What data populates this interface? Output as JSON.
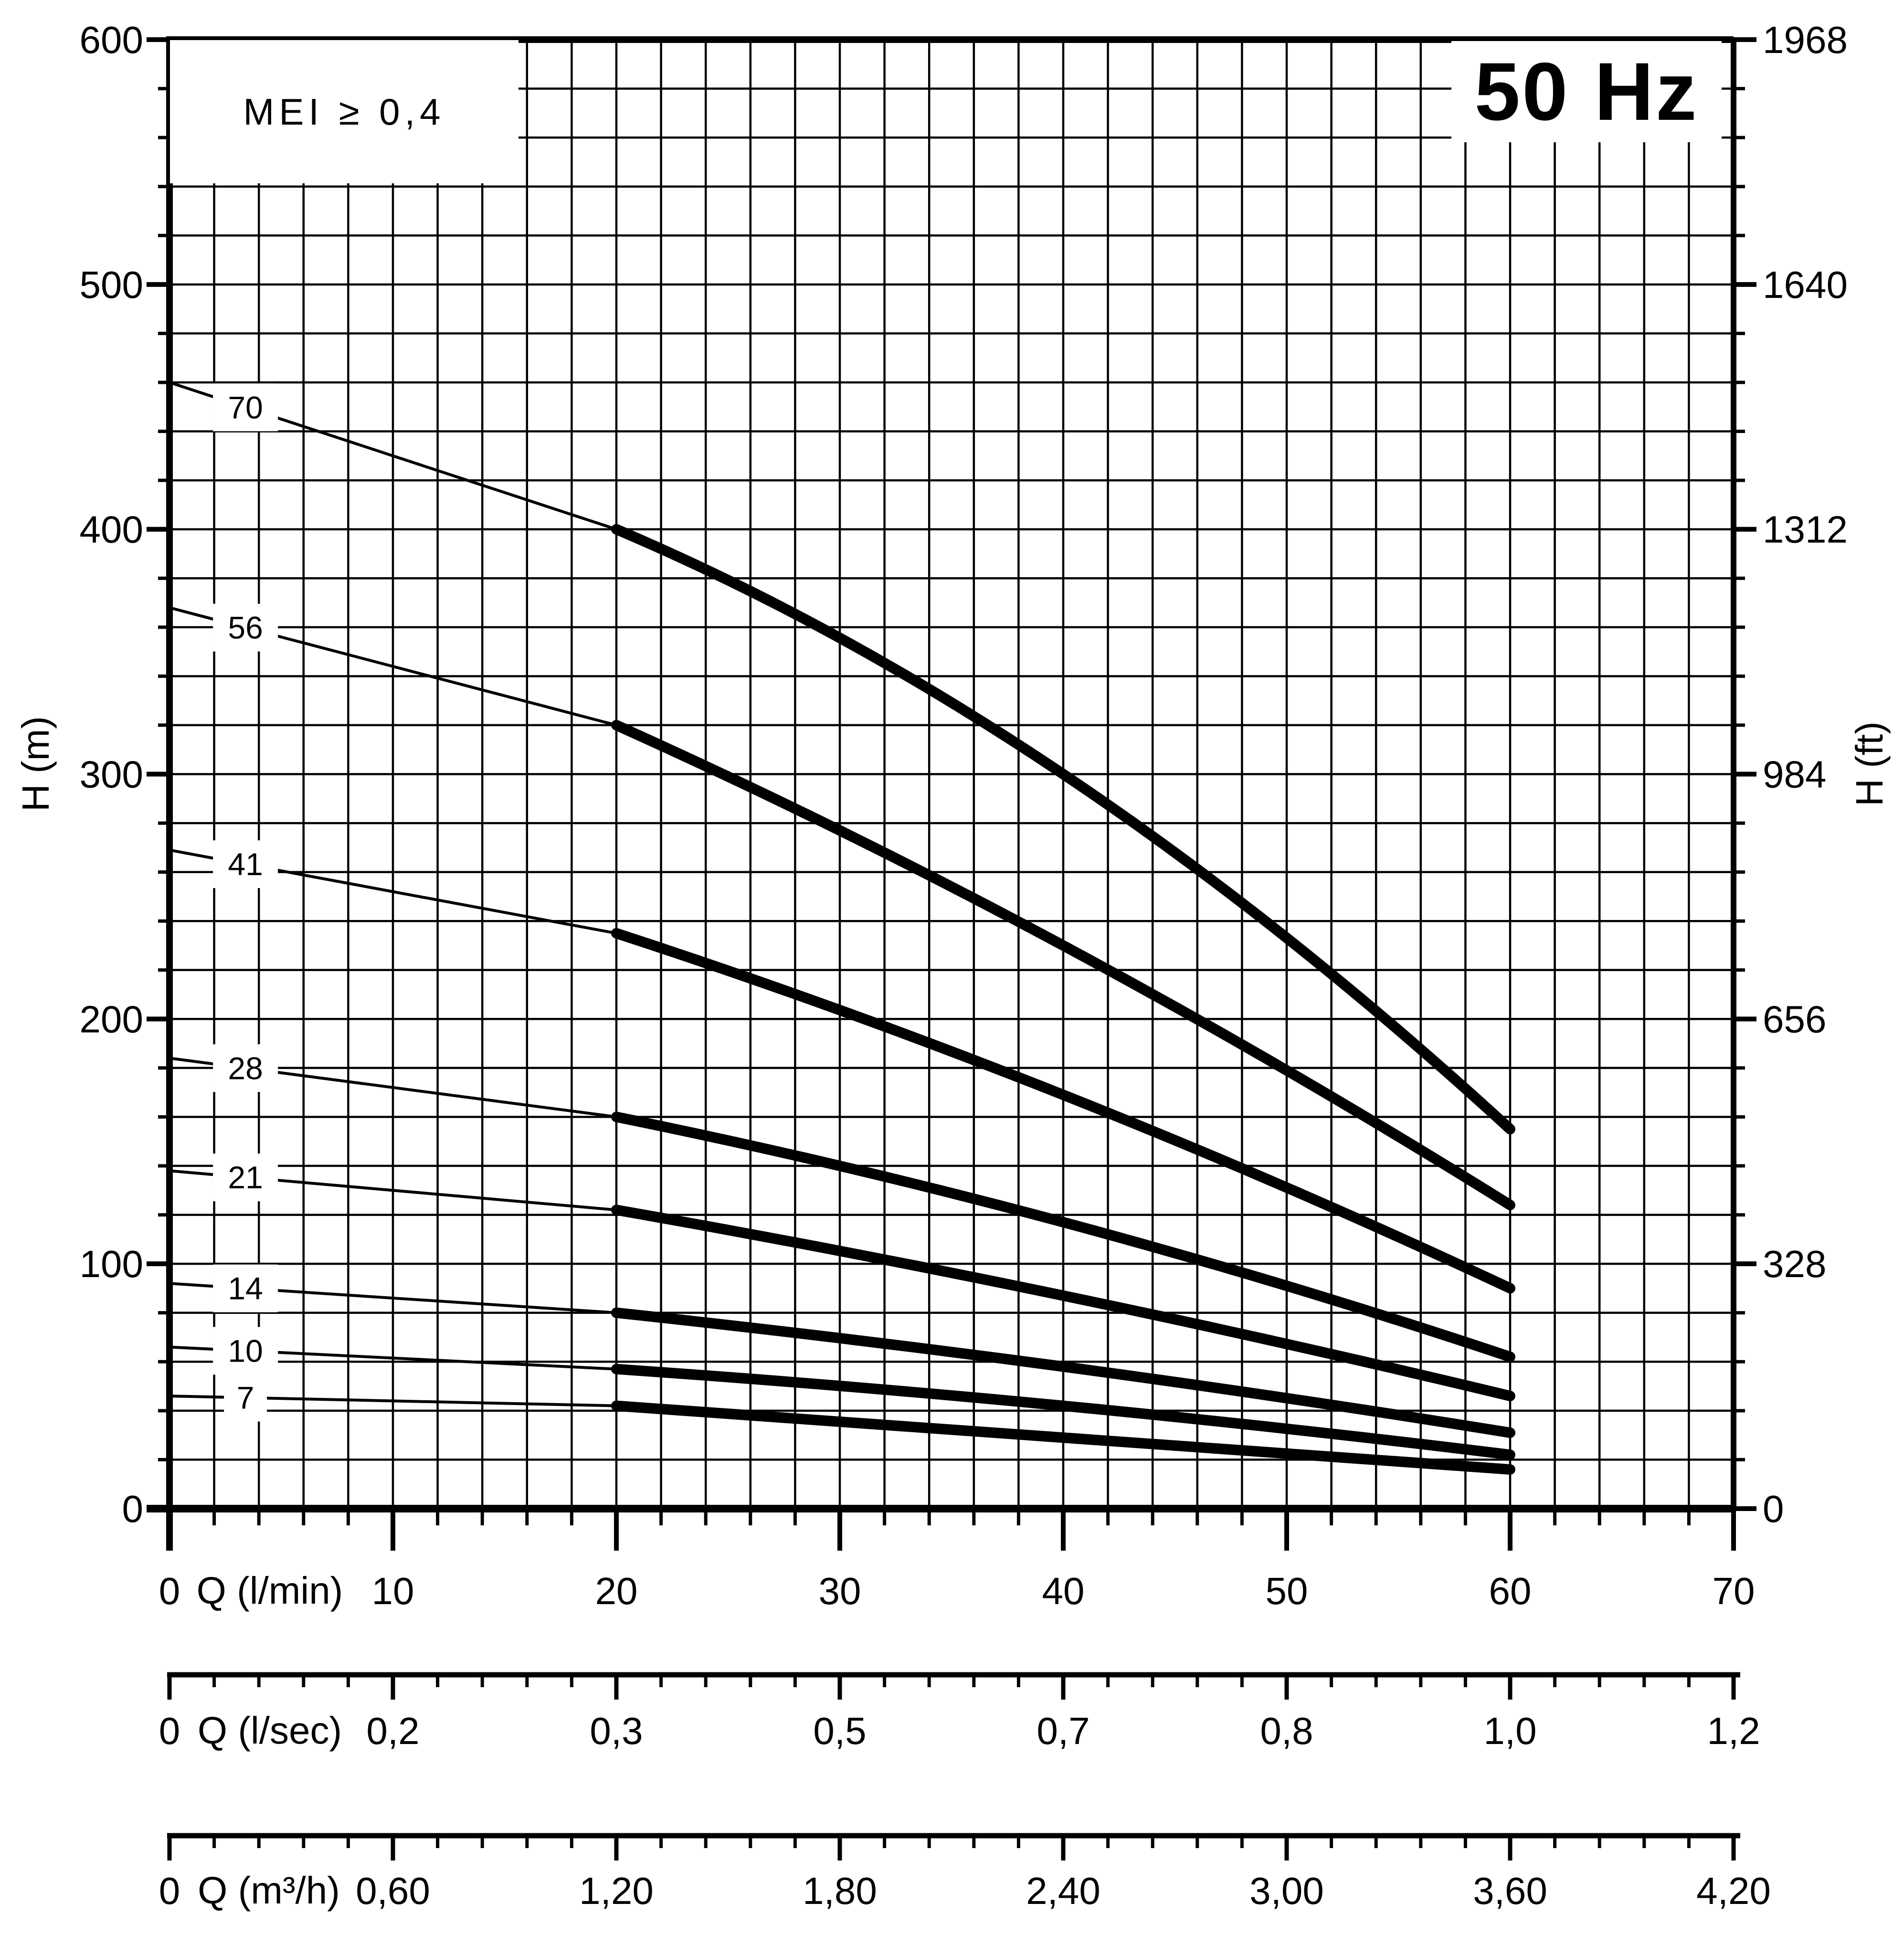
{
  "mei_label": "MEI ≥ 0,4",
  "frequency_badge": "50 Hz",
  "axes": {
    "left": {
      "label": "H (m)",
      "ticks": [
        0,
        100,
        200,
        300,
        400,
        500,
        600
      ]
    },
    "right": {
      "label": "H (ft)",
      "ticks": [
        0,
        328,
        656,
        984,
        1312,
        1640,
        1968
      ]
    },
    "bottom_lmin": {
      "label": "Q (l/min)",
      "ticks": [
        0,
        10,
        20,
        30,
        40,
        50,
        60,
        70
      ]
    },
    "ruler_lsec": {
      "label": "Q (l/sec)",
      "ticks": [
        "0",
        "0,2",
        "0,3",
        "0,5",
        "0,7",
        "0,8",
        "1,0",
        "1,2"
      ]
    },
    "ruler_m3h": {
      "label": "Q (m³/h)",
      "ticks": [
        "0",
        "0,60",
        "1,20",
        "1,80",
        "2,40",
        "3,00",
        "3,60",
        "4,20"
      ]
    }
  },
  "chart_data": {
    "type": "line",
    "title": "50 Hz",
    "subtitle": "MEI ≥ 0,4",
    "xlabel": "Q (l/min)",
    "ylabel": "H (m)",
    "y2label": "H (ft)",
    "x2label": "Q (l/sec)",
    "x3label": "Q (m³/h)",
    "xlim": [
      0,
      70
    ],
    "ylim": [
      0,
      600
    ],
    "y2lim": [
      0,
      1968
    ],
    "x_minor_step": 2,
    "y_minor_step": 20,
    "grid": true,
    "legend": "none",
    "curve_label_q": 3.4,
    "thin_range_q": [
      0,
      20
    ],
    "thick_range_q": [
      20,
      60
    ],
    "series_note": "Each curve: number of stages; H in m at Q = 0, 20, 40, 60 l/min; thin line 0-20, thick line 20-60",
    "series": [
      {
        "name": "70",
        "points": [
          [
            0,
            460
          ],
          [
            20,
            400
          ],
          [
            40,
            300
          ],
          [
            60,
            155
          ]
        ]
      },
      {
        "name": "56",
        "points": [
          [
            0,
            368
          ],
          [
            20,
            320
          ],
          [
            40,
            230
          ],
          [
            60,
            124
          ]
        ]
      },
      {
        "name": "41",
        "points": [
          [
            0,
            269
          ],
          [
            20,
            235
          ],
          [
            40,
            169
          ],
          [
            60,
            90
          ]
        ]
      },
      {
        "name": "28",
        "points": [
          [
            0,
            184
          ],
          [
            20,
            160
          ],
          [
            40,
            117
          ],
          [
            60,
            62
          ]
        ]
      },
      {
        "name": "21",
        "points": [
          [
            0,
            138
          ],
          [
            20,
            122
          ],
          [
            40,
            87
          ],
          [
            60,
            46
          ]
        ]
      },
      {
        "name": "14",
        "points": [
          [
            0,
            92
          ],
          [
            20,
            80
          ],
          [
            40,
            58
          ],
          [
            60,
            31
          ]
        ]
      },
      {
        "name": "10",
        "points": [
          [
            0,
            66
          ],
          [
            20,
            57
          ],
          [
            40,
            42
          ],
          [
            60,
            22
          ]
        ]
      },
      {
        "name": "7",
        "points": [
          [
            0,
            46
          ],
          [
            20,
            42
          ],
          [
            40,
            29
          ],
          [
            60,
            16
          ]
        ]
      }
    ]
  },
  "colors": {
    "ink": "#000000",
    "background": "#ffffff"
  }
}
